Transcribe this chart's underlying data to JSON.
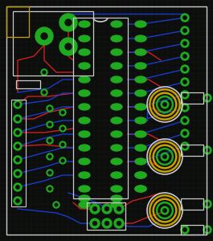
{
  "bg_color": "#0d0d0d",
  "grid_color": "#152015",
  "board_bg": "#0d120d",
  "green": "#1faa1f",
  "red_trace": "#cc2020",
  "blue_trace": "#1a3acc",
  "white_outline": "#cccccc",
  "yellow": "#c8a000",
  "fig_w": 2.65,
  "fig_h": 3.0,
  "dpi": 100
}
